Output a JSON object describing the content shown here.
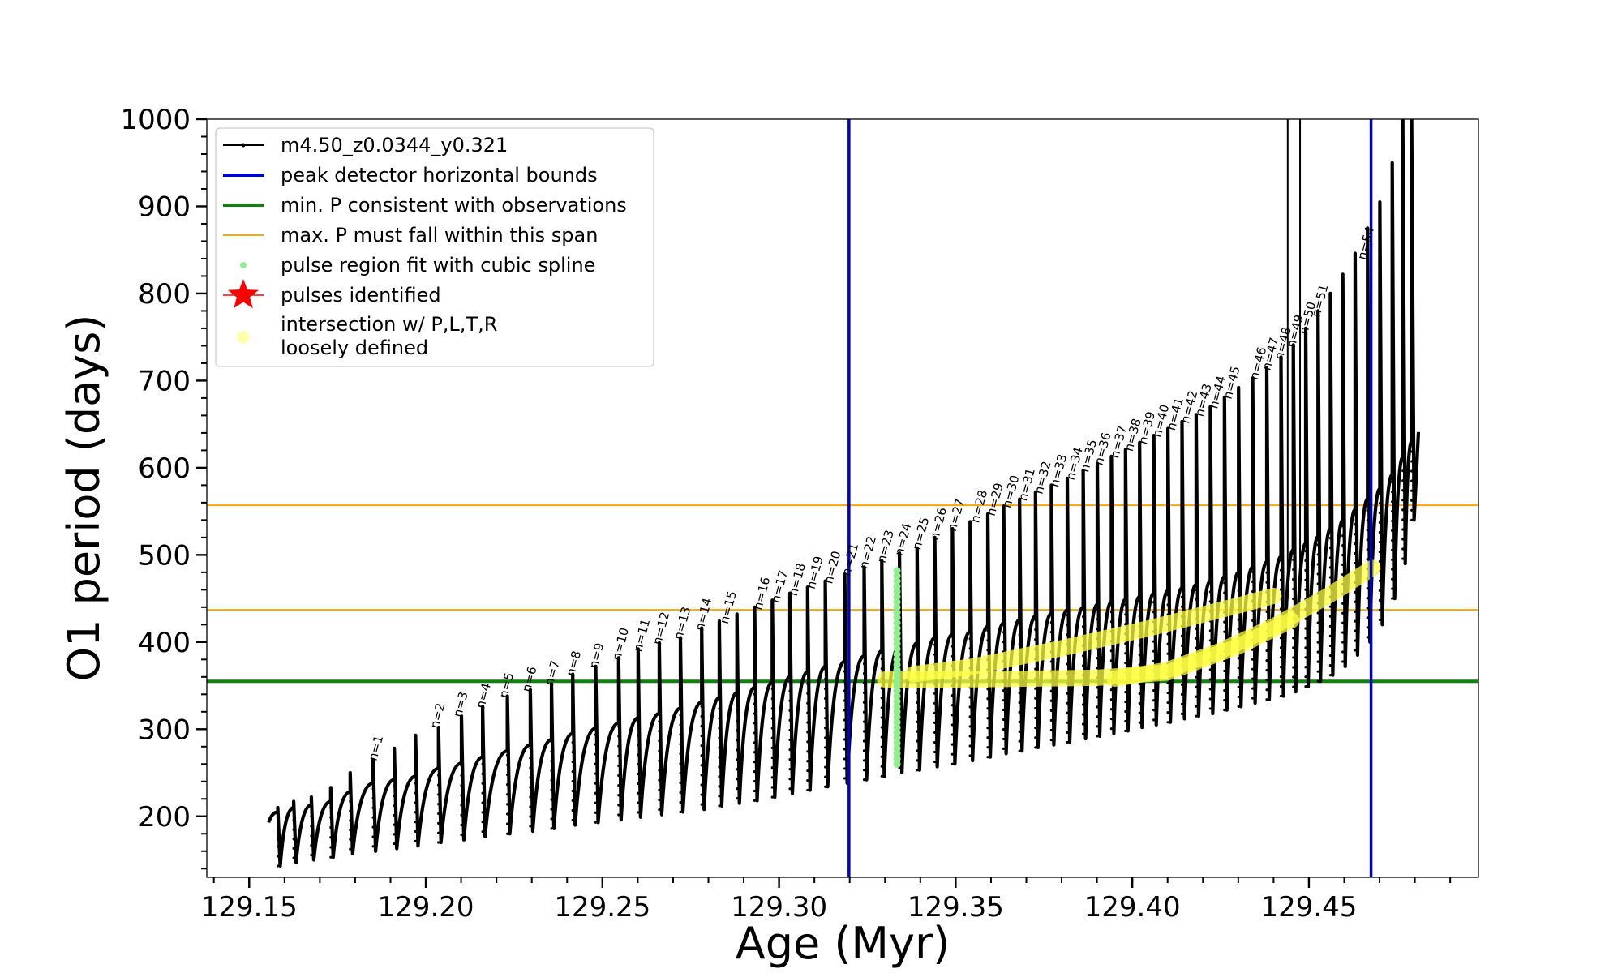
{
  "chart_data": {
    "type": "line",
    "xlabel": "Age (Myr)",
    "ylabel": "O1 period (days)",
    "xlim": [
      129.138,
      129.498
    ],
    "ylim": [
      130,
      1000
    ],
    "x_ticks": [
      129.15,
      129.2,
      129.25,
      129.3,
      129.35,
      129.4,
      129.45
    ],
    "x_tick_labels": [
      "129.15",
      "129.20",
      "129.25",
      "129.30",
      "129.35",
      "129.40",
      "129.45"
    ],
    "y_ticks": [
      200,
      300,
      400,
      500,
      600,
      700,
      800,
      900,
      1000
    ],
    "y_tick_labels": [
      "200",
      "300",
      "400",
      "500",
      "600",
      "700",
      "800",
      "900",
      "1000"
    ],
    "grid": false,
    "legend_position": "top-left",
    "legend": [
      {
        "label": "m4.50_z0.0344_y0.321",
        "kind": "line-marker",
        "color": "#000000"
      },
      {
        "label": "peak detector horizontal bounds",
        "kind": "line",
        "color": "#0000cc"
      },
      {
        "label": "min. P consistent with observations",
        "kind": "line",
        "color": "#118011"
      },
      {
        "label": "max. P must fall within this span",
        "kind": "line",
        "color": "#ffa500"
      },
      {
        "label": "pulse region fit with cubic spline",
        "kind": "dot",
        "color": "#90ee90"
      },
      {
        "label": "pulses identified",
        "kind": "star",
        "color": "#ff0000"
      },
      {
        "label": "intersection w/ P,L,T,R\nloosely defined",
        "kind": "dot",
        "color": "#ffffb0"
      }
    ],
    "vertical_lines": [
      {
        "name": "peak detector horizontal bounds",
        "x": 129.3198,
        "color": "#0000cc"
      },
      {
        "name": "peak detector horizontal bounds",
        "x": 129.4676,
        "color": "#0000cc"
      }
    ],
    "horizontal_lines": [
      {
        "name": "min. P consistent with observations",
        "y": 355,
        "color": "#118011"
      },
      {
        "name": "max. P must fall within this span",
        "y": 557,
        "color": "#ffa500"
      },
      {
        "name": "max. P must fall within this span",
        "y": 437,
        "color": "#ffa500"
      }
    ],
    "series": {
      "name": "m4.50_z0.0344_y0.321",
      "color": "#000000",
      "start": {
        "x": 129.1555,
        "y": 193
      },
      "pulses": [
        {
          "x": 129.1585,
          "pre": 205,
          "low": 143,
          "spike": 210
        },
        {
          "x": 129.163,
          "pre": 210,
          "low": 147,
          "spike": 217
        },
        {
          "x": 129.168,
          "pre": 213,
          "low": 150,
          "spike": 222
        },
        {
          "x": 129.1735,
          "pre": 217,
          "low": 153,
          "spike": 233
        },
        {
          "x": 129.179,
          "pre": 228,
          "low": 157,
          "spike": 250
        },
        {
          "x": 129.1855,
          "pre": 238,
          "low": 160,
          "spike": 265
        },
        {
          "x": 129.1915,
          "pre": 242,
          "low": 163,
          "spike": 278
        },
        {
          "x": 129.1975,
          "pre": 246,
          "low": 166,
          "spike": 293
        },
        {
          "x": 129.204,
          "pre": 255,
          "low": 170,
          "spike": 302
        },
        {
          "x": 129.2105,
          "pre": 261,
          "low": 173,
          "spike": 315
        },
        {
          "x": 129.2165,
          "pre": 268,
          "low": 177,
          "spike": 326
        },
        {
          "x": 129.2235,
          "pre": 275,
          "low": 180,
          "spike": 338
        },
        {
          "x": 129.23,
          "pre": 282,
          "low": 183,
          "spike": 345
        },
        {
          "x": 129.236,
          "pre": 288,
          "low": 186,
          "spike": 352
        },
        {
          "x": 129.242,
          "pre": 295,
          "low": 190,
          "spike": 363
        },
        {
          "x": 129.2485,
          "pre": 301,
          "low": 193,
          "spike": 372
        },
        {
          "x": 129.255,
          "pre": 307,
          "low": 196,
          "spike": 382
        },
        {
          "x": 129.2605,
          "pre": 313,
          "low": 199,
          "spike": 392
        },
        {
          "x": 129.2665,
          "pre": 318,
          "low": 202,
          "spike": 399
        },
        {
          "x": 129.2725,
          "pre": 324,
          "low": 205,
          "spike": 405
        },
        {
          "x": 129.2785,
          "pre": 331,
          "low": 208,
          "spike": 416
        },
        {
          "x": 129.2835,
          "pre": 336,
          "low": 212,
          "spike": 424
        },
        {
          "x": 129.2885,
          "pre": 342,
          "low": 215,
          "spike": 432
        },
        {
          "x": 129.2935,
          "pre": 348,
          "low": 218,
          "spike": 440
        },
        {
          "x": 129.2985,
          "pre": 354,
          "low": 222,
          "spike": 448
        },
        {
          "x": 129.3035,
          "pre": 360,
          "low": 226,
          "spike": 456
        },
        {
          "x": 129.3085,
          "pre": 366,
          "low": 230,
          "spike": 463
        },
        {
          "x": 129.3135,
          "pre": 372,
          "low": 234,
          "spike": 470
        },
        {
          "x": 129.319,
          "pre": 378,
          "low": 238,
          "spike": 478
        },
        {
          "x": 129.3245,
          "pre": 384,
          "low": 242,
          "spike": 486
        },
        {
          "x": 129.3295,
          "pre": 390,
          "low": 246,
          "spike": 493
        },
        {
          "x": 129.3345,
          "pre": 396,
          "low": 250,
          "spike": 502
        },
        {
          "x": 129.3395,
          "pre": 399,
          "low": 253,
          "spike": 508
        },
        {
          "x": 129.3445,
          "pre": 405,
          "low": 257,
          "spike": 520
        },
        {
          "x": 129.3495,
          "pre": 409,
          "low": 260,
          "spike": 530
        },
        {
          "x": 129.3545,
          "pre": 412,
          "low": 264,
          "spike": 538
        },
        {
          "x": 129.3595,
          "pre": 418,
          "low": 268,
          "spike": 547
        },
        {
          "x": 129.364,
          "pre": 422,
          "low": 272,
          "spike": 556
        },
        {
          "x": 129.3685,
          "pre": 426,
          "low": 275,
          "spike": 564
        },
        {
          "x": 129.373,
          "pre": 430,
          "low": 279,
          "spike": 572
        },
        {
          "x": 129.3775,
          "pre": 433,
          "low": 282,
          "spike": 580
        },
        {
          "x": 129.382,
          "pre": 437,
          "low": 285,
          "spike": 588
        },
        {
          "x": 129.3865,
          "pre": 440,
          "low": 289,
          "spike": 597
        },
        {
          "x": 129.3905,
          "pre": 443,
          "low": 292,
          "spike": 605
        },
        {
          "x": 129.3945,
          "pre": 446,
          "low": 295,
          "spike": 613
        },
        {
          "x": 129.3985,
          "pre": 449,
          "low": 298,
          "spike": 621
        },
        {
          "x": 129.4025,
          "pre": 452,
          "low": 302,
          "spike": 629
        },
        {
          "x": 129.4065,
          "pre": 456,
          "low": 305,
          "spike": 637
        },
        {
          "x": 129.4105,
          "pre": 459,
          "low": 308,
          "spike": 645
        },
        {
          "x": 129.4145,
          "pre": 462,
          "low": 312,
          "spike": 653
        },
        {
          "x": 129.4185,
          "pre": 466,
          "low": 315,
          "spike": 661
        },
        {
          "x": 129.4225,
          "pre": 470,
          "low": 318,
          "spike": 670
        },
        {
          "x": 129.4265,
          "pre": 475,
          "low": 322,
          "spike": 681
        },
        {
          "x": 129.4305,
          "pre": 480,
          "low": 326,
          "spike": 692
        },
        {
          "x": 129.4345,
          "pre": 486,
          "low": 330,
          "spike": 703
        },
        {
          "x": 129.4385,
          "pre": 492,
          "low": 334,
          "spike": 715
        },
        {
          "x": 129.4425,
          "pre": 498,
          "low": 338,
          "spike": 727
        },
        {
          "x": 129.446,
          "pre": 506,
          "low": 343,
          "spike": 741
        },
        {
          "x": 129.4495,
          "pre": 513,
          "low": 349,
          "spike": 760
        },
        {
          "x": 129.453,
          "pre": 521,
          "low": 355,
          "spike": 780
        },
        {
          "x": 129.4565,
          "pre": 530,
          "low": 362,
          "spike": 800
        },
        {
          "x": 129.46,
          "pre": 540,
          "low": 372,
          "spike": 822
        },
        {
          "x": 129.4635,
          "pre": 552,
          "low": 385,
          "spike": 846
        },
        {
          "x": 129.467,
          "pre": 564,
          "low": 400,
          "spike": 875
        },
        {
          "x": 129.4705,
          "pre": 576,
          "low": 420,
          "spike": 905
        },
        {
          "x": 129.474,
          "pre": 592,
          "low": 450,
          "spike": 950
        },
        {
          "x": 129.477,
          "pre": 612,
          "low": 490,
          "spike": 1000
        },
        {
          "x": 129.4795,
          "pre": 630,
          "low": 540,
          "spike": 1000
        }
      ],
      "end": {
        "x": 129.481,
        "y": 641
      },
      "tall_spikes": [
        {
          "x": 129.444,
          "y": 1000
        },
        {
          "x": 129.4475,
          "y": 1000
        }
      ]
    },
    "spline_region": {
      "name": "pulse region fit with cubic spline",
      "x": 129.3334,
      "y_range": [
        260,
        485
      ],
      "color": "#90ee90"
    },
    "pulse_labels": [
      {
        "label": "n=1",
        "x": 129.186,
        "y": 263
      },
      {
        "label": "n=2",
        "x": 129.2035,
        "y": 300
      },
      {
        "label": "n=3",
        "x": 129.21,
        "y": 313
      },
      {
        "label": "n=4",
        "x": 129.2165,
        "y": 323
      },
      {
        "label": "n=5",
        "x": 129.223,
        "y": 335
      },
      {
        "label": "n=6",
        "x": 129.2295,
        "y": 342
      },
      {
        "label": "n=7",
        "x": 129.236,
        "y": 349
      },
      {
        "label": "n=8",
        "x": 129.242,
        "y": 360
      },
      {
        "label": "n=9",
        "x": 129.2485,
        "y": 369
      },
      {
        "label": "n=10",
        "x": 129.255,
        "y": 378
      },
      {
        "label": "n=11",
        "x": 129.261,
        "y": 388
      },
      {
        "label": "n=12",
        "x": 129.2665,
        "y": 396
      },
      {
        "label": "n=13",
        "x": 129.2725,
        "y": 402
      },
      {
        "label": "n=14",
        "x": 129.2785,
        "y": 412
      },
      {
        "label": "n=15",
        "x": 129.2855,
        "y": 420
      },
      {
        "label": "n=16",
        "x": 129.295,
        "y": 436
      },
      {
        "label": "n=17",
        "x": 129.3,
        "y": 444
      },
      {
        "label": "n=18",
        "x": 129.305,
        "y": 452
      },
      {
        "label": "n=19",
        "x": 129.31,
        "y": 460
      },
      {
        "label": "n=20",
        "x": 129.315,
        "y": 466
      },
      {
        "label": "n=21",
        "x": 129.32,
        "y": 475
      },
      {
        "label": "n=22",
        "x": 129.325,
        "y": 483
      },
      {
        "label": "n=23",
        "x": 129.33,
        "y": 490
      },
      {
        "label": "n=24",
        "x": 129.335,
        "y": 498
      },
      {
        "label": "n=25",
        "x": 129.34,
        "y": 505
      },
      {
        "label": "n=26",
        "x": 129.345,
        "y": 516
      },
      {
        "label": "n=27",
        "x": 129.35,
        "y": 526
      },
      {
        "label": "n=28",
        "x": 129.3565,
        "y": 536
      },
      {
        "label": "n=29",
        "x": 129.361,
        "y": 544
      },
      {
        "label": "n=30",
        "x": 129.3655,
        "y": 553
      },
      {
        "label": "n=31",
        "x": 129.37,
        "y": 561
      },
      {
        "label": "n=32",
        "x": 129.3745,
        "y": 569
      },
      {
        "label": "n=33",
        "x": 129.379,
        "y": 577
      },
      {
        "label": "n=34",
        "x": 129.3835,
        "y": 585
      },
      {
        "label": "n=35",
        "x": 129.3875,
        "y": 594
      },
      {
        "label": "n=36",
        "x": 129.3915,
        "y": 602
      },
      {
        "label": "n=37",
        "x": 129.396,
        "y": 610
      },
      {
        "label": "n=38",
        "x": 129.4,
        "y": 618
      },
      {
        "label": "n=39",
        "x": 129.404,
        "y": 626
      },
      {
        "label": "n=40",
        "x": 129.408,
        "y": 634
      },
      {
        "label": "n=41",
        "x": 129.412,
        "y": 642
      },
      {
        "label": "n=42",
        "x": 129.416,
        "y": 650
      },
      {
        "label": "n=43",
        "x": 129.42,
        "y": 658
      },
      {
        "label": "n=44",
        "x": 129.424,
        "y": 667
      },
      {
        "label": "n=45",
        "x": 129.428,
        "y": 678
      },
      {
        "label": "n=46",
        "x": 129.4355,
        "y": 700
      },
      {
        "label": "n=47",
        "x": 129.439,
        "y": 711
      },
      {
        "label": "n=48",
        "x": 129.4425,
        "y": 723
      },
      {
        "label": "n=49",
        "x": 129.446,
        "y": 737
      },
      {
        "label": "n=50",
        "x": 129.4495,
        "y": 752
      },
      {
        "label": "n=51",
        "x": 129.453,
        "y": 772
      },
      {
        "label": "n=54",
        "x": 129.466,
        "y": 838
      }
    ],
    "intersection_bands": {
      "name": "intersection w/ P,L,T,R\nloosely defined",
      "color": "#ffff44",
      "bands": [
        {
          "x": [
            129.338,
            129.355,
            129.38,
            129.405,
            129.43,
            129.44
          ],
          "y": [
            363,
            372,
            393,
            416,
            442,
            453
          ]
        },
        {
          "x": [
            129.33,
            129.35,
            129.37,
            129.39,
            129.41,
            129.43,
            129.445
          ],
          "y": [
            357,
            357,
            358,
            359,
            365,
            395,
            425
          ]
        },
        {
          "x": [
            129.395,
            129.41,
            129.425,
            129.44,
            129.455,
            129.468
          ],
          "y": [
            358,
            368,
            390,
            418,
            452,
            485
          ]
        }
      ]
    }
  }
}
